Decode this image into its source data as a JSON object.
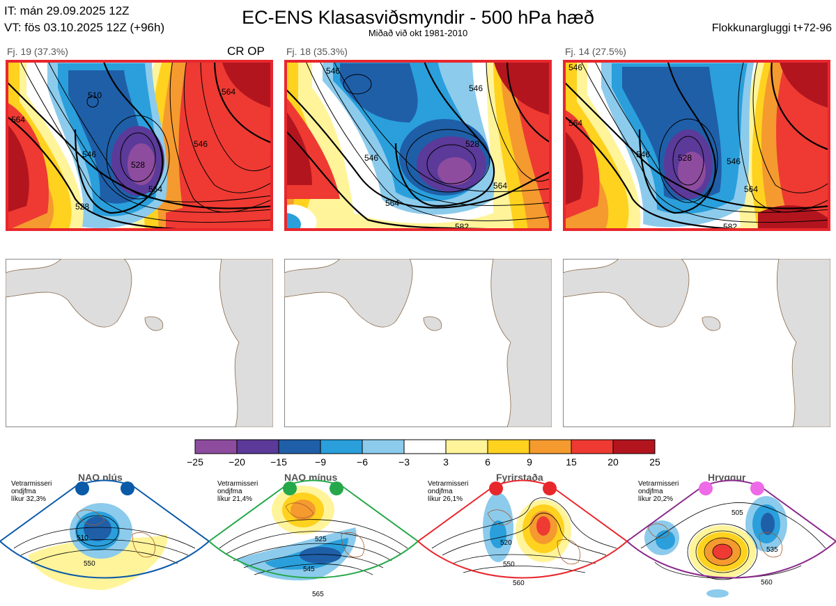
{
  "header": {
    "it_line": "IT: mán 29.09.2025 12Z",
    "vt_line": "VT: fös 03.10.2025 12Z  (+96h)",
    "title": "EC-ENS Klasasviðsmyndir - 500 hPa hæð",
    "subtitle": "Miðað við okt 1981-2010",
    "window": "Flokkunargluggi t+72-96"
  },
  "clusters": [
    {
      "label": "Fj. 19 (37.3%)",
      "flag": "CR OP",
      "contours": [
        "564",
        "546",
        "528",
        "510",
        "564",
        "546",
        "564",
        "528"
      ]
    },
    {
      "label": "Fj. 18 (35.3%)",
      "flag": "",
      "contours": [
        "546",
        "546",
        "528",
        "564",
        "546",
        "564",
        "582"
      ]
    },
    {
      "label": "Fj. 14 (27.5%)",
      "flag": "",
      "contours": [
        "546",
        "564",
        "546",
        "528",
        "546",
        "564",
        "582"
      ]
    }
  ],
  "colorbar": {
    "ticks": [
      "−25",
      "−20",
      "−15",
      "−9",
      "−6",
      "−3",
      "3",
      "6",
      "9",
      "15",
      "20",
      "25"
    ],
    "colors": [
      "#8e4c9e",
      "#5b3a99",
      "#1f5fa8",
      "#2a9fdc",
      "#8ccbec",
      "#ffffff",
      "#fff49a",
      "#ffd21f",
      "#f59a2f",
      "#ee3a32",
      "#b3151f"
    ]
  },
  "patterns": [
    {
      "name": "NAO plús",
      "text1": "Vetrarmisseri",
      "text2": "ondjfma",
      "text3": "líkur 32,3%",
      "color": "#0a5aa8",
      "labels": [
        "510",
        "550"
      ]
    },
    {
      "name": "NAO mínus",
      "text1": "Vetrarmisseri",
      "text2": "ondjfma",
      "text3": "líkur 21,4%",
      "color": "#25a84a",
      "labels": [
        "525",
        "545",
        "565"
      ]
    },
    {
      "name": "Fyrirstaða",
      "text1": "Vetrarmisseri",
      "text2": "ondjfma",
      "text3": "líkur 26,1%",
      "color": "#e8272d",
      "labels": [
        "520",
        "550",
        "560"
      ]
    },
    {
      "name": "Hryggur",
      "text1": "Vetrarmisseri",
      "text2": "ondjfma",
      "text3": "líkur 20,2%",
      "color": "#8b2a8c",
      "labels": [
        "505",
        "535",
        "560"
      ]
    }
  ]
}
